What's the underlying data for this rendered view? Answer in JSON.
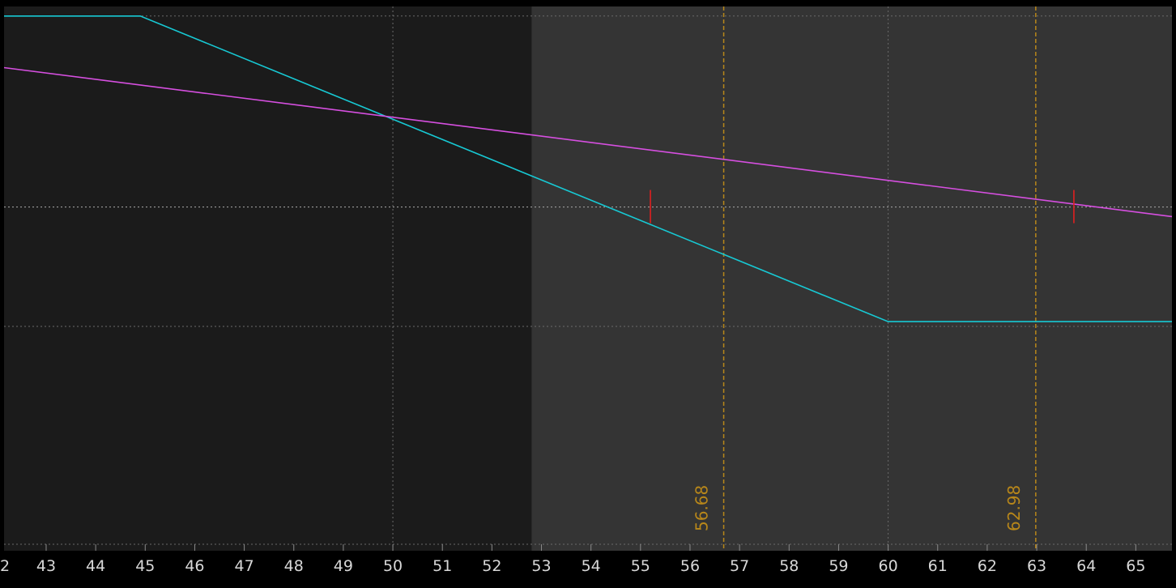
{
  "chart_data": {
    "type": "line",
    "x_ticks": [
      "43",
      "44",
      "45",
      "46",
      "47",
      "48",
      "49",
      "50",
      "51",
      "52",
      "53",
      "54",
      "55",
      "56",
      "57",
      "58",
      "59",
      "60",
      "61",
      "62",
      "63",
      "64",
      "65"
    ],
    "x_range": [
      42.15,
      65.73
    ],
    "y_range": [
      -3.6,
      2.1
    ],
    "shaded_region_start_x": 52.8,
    "grid": true,
    "gridlines_y": [
      2,
      0,
      -1.25
    ],
    "gridlines_x": [
      50,
      60
    ],
    "zero_line_y": 0,
    "series": [
      {
        "color": "#17c9d4",
        "points": [
          [
            42.15,
            2.0
          ],
          [
            44.9,
            2.0
          ],
          [
            60.0,
            -1.2
          ],
          [
            65.73,
            -1.2
          ]
        ]
      },
      {
        "color": "#d64fe0",
        "points": [
          [
            42.15,
            1.46
          ],
          [
            65.73,
            -0.1
          ]
        ]
      }
    ],
    "breakeven_markers": [
      {
        "x": 55.2,
        "y": 0,
        "color": "#e02020"
      },
      {
        "x": 63.75,
        "y": 0,
        "color": "#e02020"
      }
    ],
    "vertical_markers": [
      {
        "x": 56.68,
        "label": "56.68",
        "color": "#b8871a"
      },
      {
        "x": 62.98,
        "label": "62.98",
        "color": "#b8871a"
      }
    ],
    "colors": {
      "background_left": "#1b1b1b",
      "background_right": "#343434",
      "axis_background": "#000000",
      "grid": "#6a6a6a",
      "zero_line": "#9a9a9a"
    }
  }
}
